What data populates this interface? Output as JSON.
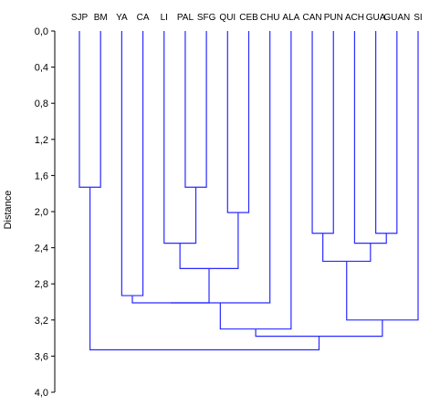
{
  "chart_data": {
    "type": "dendrogram",
    "ylabel": "Distance",
    "ylim": [
      0,
      4
    ],
    "y_ticks": [
      "0,0",
      "0,4",
      "0,8",
      "1,2",
      "1,6",
      "2,0",
      "2,4",
      "2,8",
      "3,2",
      "3,6",
      "4,0"
    ],
    "leaves": [
      "SJP",
      "BM",
      "YA",
      "CA",
      "LI",
      "PAL",
      "SFG",
      "QUI",
      "CEB",
      "CHU",
      "ALA",
      "CAN",
      "PUN",
      "ACH",
      "GUA",
      "GUAN",
      "SI"
    ],
    "merges": [
      {
        "left": "SJP",
        "right": "BM",
        "height": 1.73
      },
      {
        "left": "PAL",
        "right": "SFG",
        "height": 1.73
      },
      {
        "left": "QUI",
        "right": "CEB",
        "height": 2.01
      },
      {
        "left": "CAN",
        "right": "PUN",
        "height": 2.24
      },
      {
        "left": "GUA",
        "right": "GUAN",
        "height": 2.24
      },
      {
        "left": "LI",
        "right": "PAL+SFG",
        "height": 2.35
      },
      {
        "left": "ACH",
        "right": "GUA+GUAN",
        "height": 2.35
      },
      {
        "left": "CAN+PUN",
        "right": "ACH+GUA+GUAN",
        "height": 2.55
      },
      {
        "left": "LI+PAL+SFG",
        "right": "QUI+CEB",
        "height": 2.63
      },
      {
        "left": "YA",
        "right": "CA",
        "height": 2.93
      },
      {
        "left": "YA+CA",
        "right": "LI+PAL+SFG+QUI+CEB",
        "height": 3.01
      },
      {
        "left": "YA..CEB",
        "right": "CHU",
        "height": 3.01
      },
      {
        "left": "YA..CHU",
        "right": "ALA",
        "height": 3.3
      },
      {
        "left": "CAN..GUAN",
        "right": "SI",
        "height": 3.2
      },
      {
        "left": "YA..ALA",
        "right": "CAN..SI",
        "height": 3.38
      },
      {
        "left": "SJP+BM",
        "right": "YA..SI",
        "height": 3.53
      }
    ],
    "colors": {
      "branch": "#2a2aff",
      "axis": "#000000"
    }
  }
}
